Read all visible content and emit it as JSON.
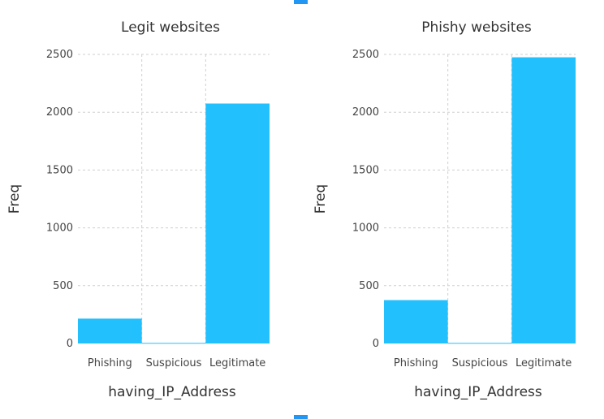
{
  "colors": {
    "bar": "#22c0fc",
    "marker": "#2196f3"
  },
  "chart_data": [
    {
      "type": "bar",
      "title": "Legit websites",
      "xlabel": "having_IP_Address",
      "ylabel": "Freq",
      "categories": [
        "Phishing",
        "Suspicious",
        "Legitimate"
      ],
      "values": [
        215,
        5,
        2075
      ],
      "ylim": [
        0,
        2500
      ],
      "yticks": [
        "0",
        "500",
        "1000",
        "1500",
        "2000",
        "2500"
      ],
      "grid": true,
      "legend": "none"
    },
    {
      "type": "bar",
      "title": "Phishy websites",
      "xlabel": "having_IP_Address",
      "ylabel": "Freq",
      "categories": [
        "Phishing",
        "Suspicious",
        "Legitimate"
      ],
      "values": [
        375,
        5,
        2475
      ],
      "ylim": [
        0,
        2500
      ],
      "yticks": [
        "0",
        "500",
        "1000",
        "1500",
        "2000",
        "2500"
      ],
      "grid": true,
      "legend": "none"
    }
  ]
}
